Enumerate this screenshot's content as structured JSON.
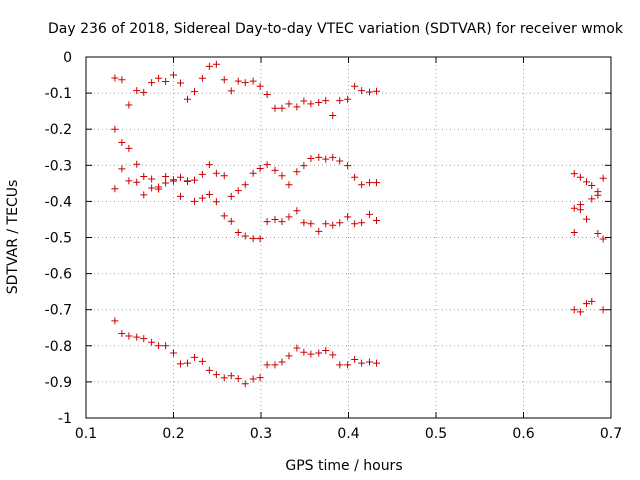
{
  "chart_data": {
    "type": "scatter",
    "title": "Day 236 of 2018, Sidereal Day-to-day VTEC variation (SDTVAR) for receiver wmok",
    "xlabel": "GPS time / hours",
    "ylabel": "SDTVAR / TECUs",
    "xlim": [
      0.1,
      0.7
    ],
    "ylim": [
      -1,
      0
    ],
    "grid": true,
    "marker": "+",
    "color": "#cc0000",
    "x_ticks": [
      {
        "value": 0.1,
        "label": "0.1"
      },
      {
        "value": 0.2,
        "label": "0.2"
      },
      {
        "value": 0.3,
        "label": "0.3"
      },
      {
        "value": 0.4,
        "label": "0.4"
      },
      {
        "value": 0.5,
        "label": "0.5"
      },
      {
        "value": 0.6,
        "label": "0.6"
      },
      {
        "value": 0.7,
        "label": "0.7"
      }
    ],
    "y_ticks": [
      {
        "value": 0,
        "label": "0"
      },
      {
        "value": -0.1,
        "label": "-0.1"
      },
      {
        "value": -0.2,
        "label": "-0.2"
      },
      {
        "value": -0.3,
        "label": "-0.3"
      },
      {
        "value": -0.4,
        "label": "-0.4"
      },
      {
        "value": -0.5,
        "label": "-0.5"
      },
      {
        "value": -0.6,
        "label": "-0.6"
      },
      {
        "value": -0.7,
        "label": "-0.7"
      },
      {
        "value": -0.8,
        "label": "-0.8"
      },
      {
        "value": -0.9,
        "label": "-0.9"
      },
      {
        "value": -1,
        "label": "-1"
      }
    ],
    "points": [
      [
        0.133,
        -0.058
      ],
      [
        0.141,
        -0.063
      ],
      [
        0.149,
        -0.133
      ],
      [
        0.158,
        -0.093
      ],
      [
        0.166,
        -0.098
      ],
      [
        0.175,
        -0.071
      ],
      [
        0.183,
        -0.059
      ],
      [
        0.191,
        -0.068
      ],
      [
        0.2,
        -0.05
      ],
      [
        0.208,
        -0.072
      ],
      [
        0.216,
        -0.117
      ],
      [
        0.224,
        -0.096
      ],
      [
        0.233,
        -0.059
      ],
      [
        0.241,
        -0.026
      ],
      [
        0.249,
        -0.02
      ],
      [
        0.258,
        -0.063
      ],
      [
        0.266,
        -0.094
      ],
      [
        0.274,
        -0.067
      ],
      [
        0.282,
        -0.071
      ],
      [
        0.291,
        -0.067
      ],
      [
        0.299,
        -0.081
      ],
      [
        0.307,
        -0.104
      ],
      [
        0.316,
        -0.142
      ],
      [
        0.324,
        -0.142
      ],
      [
        0.332,
        -0.13
      ],
      [
        0.341,
        -0.138
      ],
      [
        0.349,
        -0.122
      ],
      [
        0.357,
        -0.13
      ],
      [
        0.366,
        -0.126
      ],
      [
        0.374,
        -0.121
      ],
      [
        0.382,
        -0.162
      ],
      [
        0.39,
        -0.121
      ],
      [
        0.399,
        -0.117
      ],
      [
        0.407,
        -0.081
      ],
      [
        0.415,
        -0.093
      ],
      [
        0.424,
        -0.097
      ],
      [
        0.432,
        -0.095
      ],
      [
        0.133,
        -0.2
      ],
      [
        0.141,
        -0.237
      ],
      [
        0.149,
        -0.253
      ],
      [
        0.158,
        -0.297
      ],
      [
        0.166,
        -0.331
      ],
      [
        0.175,
        -0.338
      ],
      [
        0.183,
        -0.366
      ],
      [
        0.191,
        -0.331
      ],
      [
        0.2,
        -0.34
      ],
      [
        0.208,
        -0.333
      ],
      [
        0.216,
        -0.343
      ],
      [
        0.224,
        -0.341
      ],
      [
        0.233,
        -0.325
      ],
      [
        0.241,
        -0.298
      ],
      [
        0.249,
        -0.322
      ],
      [
        0.258,
        -0.329
      ],
      [
        0.266,
        -0.386
      ],
      [
        0.274,
        -0.37
      ],
      [
        0.282,
        -0.354
      ],
      [
        0.291,
        -0.322
      ],
      [
        0.299,
        -0.309
      ],
      [
        0.307,
        -0.298
      ],
      [
        0.316,
        -0.314
      ],
      [
        0.324,
        -0.329
      ],
      [
        0.332,
        -0.354
      ],
      [
        0.341,
        -0.318
      ],
      [
        0.349,
        -0.301
      ],
      [
        0.357,
        -0.281
      ],
      [
        0.366,
        -0.278
      ],
      [
        0.374,
        -0.283
      ],
      [
        0.382,
        -0.278
      ],
      [
        0.39,
        -0.288
      ],
      [
        0.399,
        -0.301
      ],
      [
        0.407,
        -0.333
      ],
      [
        0.415,
        -0.354
      ],
      [
        0.424,
        -0.348
      ],
      [
        0.432,
        -0.348
      ],
      [
        0.133,
        -0.365
      ],
      [
        0.141,
        -0.31
      ],
      [
        0.149,
        -0.343
      ],
      [
        0.158,
        -0.347
      ],
      [
        0.166,
        -0.382
      ],
      [
        0.175,
        -0.363
      ],
      [
        0.183,
        -0.36
      ],
      [
        0.191,
        -0.349
      ],
      [
        0.2,
        -0.344
      ],
      [
        0.208,
        -0.386
      ],
      [
        0.216,
        -0.345
      ],
      [
        0.224,
        -0.4
      ],
      [
        0.233,
        -0.391
      ],
      [
        0.241,
        -0.381
      ],
      [
        0.249,
        -0.401
      ],
      [
        0.258,
        -0.44
      ],
      [
        0.266,
        -0.455
      ],
      [
        0.274,
        -0.486
      ],
      [
        0.282,
        -0.496
      ],
      [
        0.291,
        -0.503
      ],
      [
        0.299,
        -0.503
      ],
      [
        0.307,
        -0.456
      ],
      [
        0.316,
        -0.45
      ],
      [
        0.324,
        -0.456
      ],
      [
        0.332,
        -0.443
      ],
      [
        0.341,
        -0.426
      ],
      [
        0.349,
        -0.459
      ],
      [
        0.357,
        -0.462
      ],
      [
        0.366,
        -0.483
      ],
      [
        0.374,
        -0.462
      ],
      [
        0.382,
        -0.466
      ],
      [
        0.39,
        -0.459
      ],
      [
        0.399,
        -0.443
      ],
      [
        0.407,
        -0.462
      ],
      [
        0.415,
        -0.459
      ],
      [
        0.424,
        -0.436
      ],
      [
        0.432,
        -0.453
      ],
      [
        0.133,
        -0.731
      ],
      [
        0.141,
        -0.766
      ],
      [
        0.149,
        -0.773
      ],
      [
        0.158,
        -0.776
      ],
      [
        0.166,
        -0.78
      ],
      [
        0.175,
        -0.79
      ],
      [
        0.183,
        -0.8
      ],
      [
        0.191,
        -0.8
      ],
      [
        0.2,
        -0.82
      ],
      [
        0.208,
        -0.85
      ],
      [
        0.216,
        -0.848
      ],
      [
        0.224,
        -0.832
      ],
      [
        0.233,
        -0.843
      ],
      [
        0.241,
        -0.868
      ],
      [
        0.249,
        -0.88
      ],
      [
        0.258,
        -0.889
      ],
      [
        0.266,
        -0.883
      ],
      [
        0.274,
        -0.891
      ],
      [
        0.282,
        -0.905
      ],
      [
        0.291,
        -0.892
      ],
      [
        0.299,
        -0.888
      ],
      [
        0.307,
        -0.853
      ],
      [
        0.316,
        -0.853
      ],
      [
        0.324,
        -0.845
      ],
      [
        0.332,
        -0.828
      ],
      [
        0.341,
        -0.806
      ],
      [
        0.349,
        -0.818
      ],
      [
        0.357,
        -0.823
      ],
      [
        0.366,
        -0.82
      ],
      [
        0.374,
        -0.813
      ],
      [
        0.382,
        -0.825
      ],
      [
        0.39,
        -0.853
      ],
      [
        0.399,
        -0.853
      ],
      [
        0.407,
        -0.838
      ],
      [
        0.415,
        -0.848
      ],
      [
        0.424,
        -0.845
      ],
      [
        0.432,
        -0.848
      ],
      [
        0.658,
        -0.323
      ],
      [
        0.665,
        -0.333
      ],
      [
        0.672,
        -0.346
      ],
      [
        0.678,
        -0.356
      ],
      [
        0.685,
        -0.373
      ],
      [
        0.691,
        -0.336
      ],
      [
        0.658,
        -0.419
      ],
      [
        0.665,
        -0.409
      ],
      [
        0.672,
        -0.449
      ],
      [
        0.678,
        -0.393
      ],
      [
        0.685,
        -0.383
      ],
      [
        0.658,
        -0.486
      ],
      [
        0.665,
        -0.423
      ],
      [
        0.685,
        -0.489
      ],
      [
        0.691,
        -0.504
      ],
      [
        0.658,
        -0.7
      ],
      [
        0.665,
        -0.706
      ],
      [
        0.672,
        -0.683
      ],
      [
        0.678,
        -0.677
      ],
      [
        0.691,
        -0.7
      ]
    ]
  }
}
